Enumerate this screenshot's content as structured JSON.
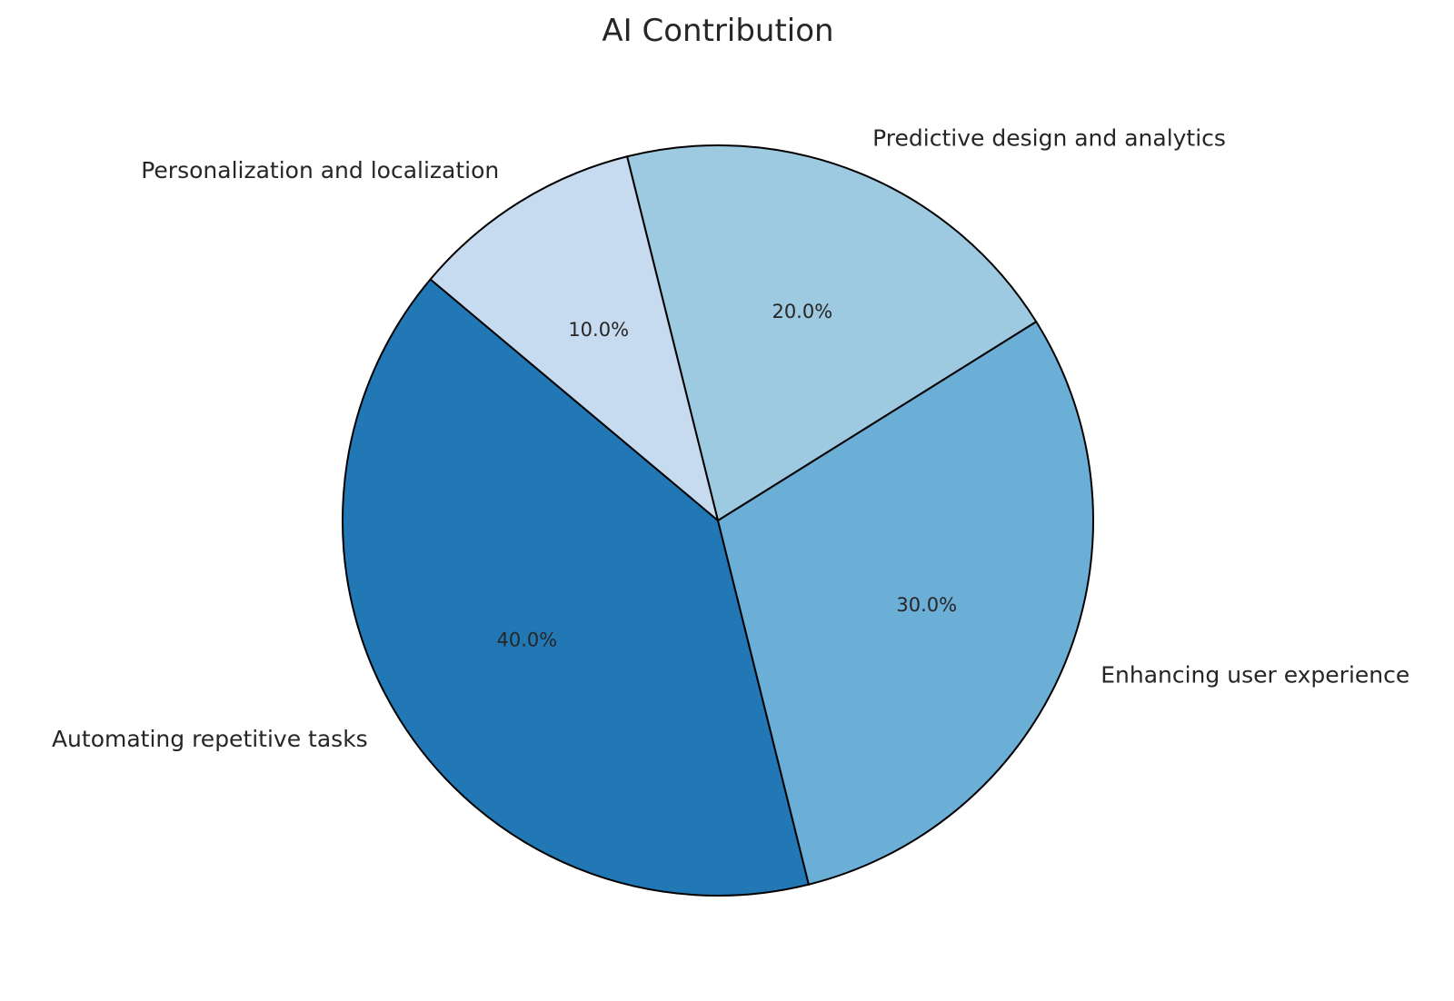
{
  "chart_data": {
    "type": "pie",
    "title": "AI Contribution",
    "slices": [
      {
        "label": "Automating repetitive tasks",
        "value": 40,
        "pct_label": "40.0%",
        "color": "#2178b4"
      },
      {
        "label": "Enhancing user experience",
        "value": 30,
        "pct_label": "30.0%",
        "color": "#6baed6"
      },
      {
        "label": "Predictive design and analytics",
        "value": 20,
        "pct_label": "20.0%",
        "color": "#9ecae1"
      },
      {
        "label": "Personalization and localization",
        "value": 10,
        "pct_label": "10.0%",
        "color": "#c6dbef"
      }
    ],
    "start_angle_deg": 140,
    "direction": "counterclockwise",
    "edge_color": "#000000"
  }
}
